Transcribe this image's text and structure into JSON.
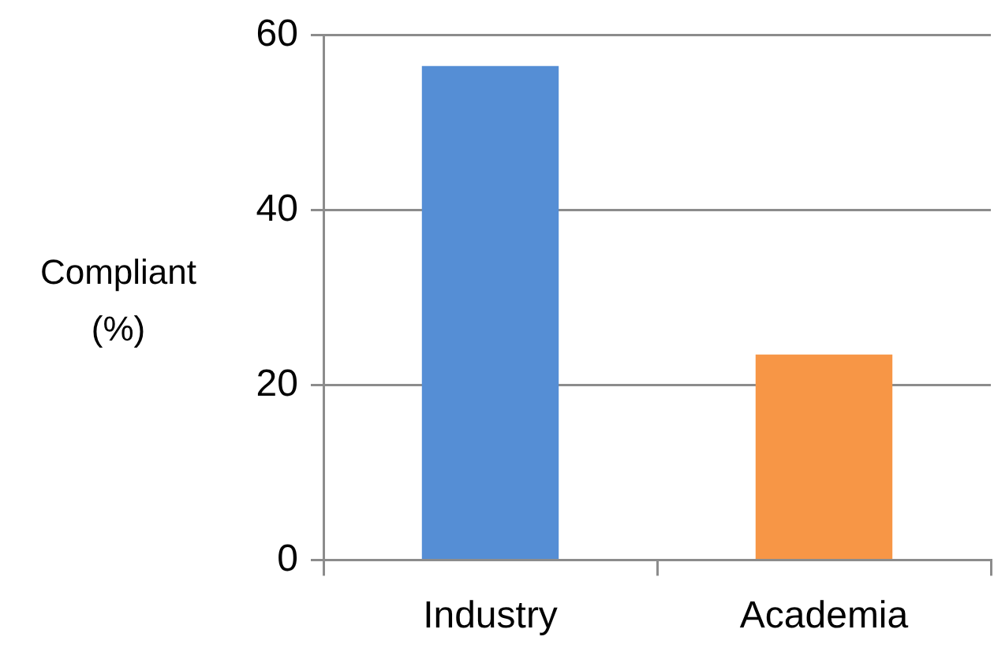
{
  "chart_data": {
    "type": "bar",
    "ylabel": "Compliant (%)",
    "categories": [
      "Industry",
      "Academia"
    ],
    "values": [
      56.5,
      23.5
    ],
    "colors": [
      "#558ed5",
      "#f79646"
    ],
    "ylim": [
      0,
      60
    ],
    "yticks": [
      0,
      20,
      40,
      60
    ],
    "grid": "y"
  }
}
